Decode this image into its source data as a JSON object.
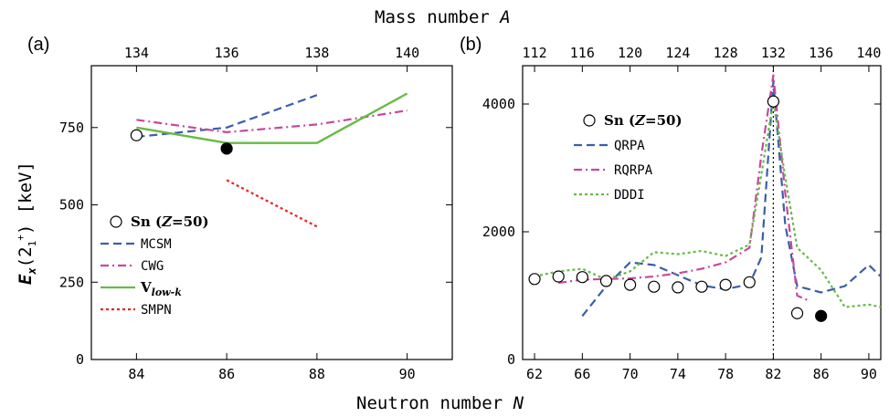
{
  "figure": {
    "top_axis_title": "Mass number A",
    "bottom_axis_title": "Neutron number N",
    "left_axis_title": "E_x(2_1^+) [keV]"
  },
  "colors": {
    "qrpa_blue": "#3a5fa8",
    "cwg_magenta": "#c8479e",
    "vlowk_green": "#66bb44",
    "smpn_red": "#ee2222",
    "dddi_green": "#66bb44",
    "vline": "#000000"
  },
  "chart_data": [
    {
      "panel": "(a)",
      "type": "line",
      "xlabel": "Neutron number N",
      "x2label": "Mass number A",
      "ylabel": "E_x(2_1^+) [keV]",
      "xlim": [
        83,
        91
      ],
      "ylim": [
        0,
        950
      ],
      "xticks": [
        84,
        86,
        88,
        90
      ],
      "x2ticks": [
        134,
        136,
        138,
        140
      ],
      "yticks": [
        0,
        250,
        500,
        750
      ],
      "series": [
        {
          "name": "MCSM",
          "style": "dash",
          "color": "#3a5fa8",
          "x": [
            84,
            86,
            88
          ],
          "y": [
            720,
            750,
            855
          ]
        },
        {
          "name": "CWG",
          "style": "dashdot",
          "color": "#c8479e",
          "x": [
            84,
            86,
            88,
            90
          ],
          "y": [
            775,
            735,
            760,
            805
          ]
        },
        {
          "name": "V_low-k",
          "style": "solid",
          "color": "#66bb44",
          "x": [
            84,
            86,
            88,
            90
          ],
          "y": [
            750,
            700,
            700,
            860
          ]
        },
        {
          "name": "SMPN",
          "style": "dot",
          "color": "#ee2222",
          "x": [
            86,
            88
          ],
          "y": [
            580,
            430
          ]
        }
      ],
      "markers": [
        {
          "name": "Sn (Z=50)",
          "filled": false,
          "x": [
            84
          ],
          "y": [
            725
          ]
        },
        {
          "name": "Sn (Z=50) filled",
          "filled": true,
          "x": [
            86
          ],
          "y": [
            682
          ]
        }
      ],
      "legend": {
        "position": "lower-left",
        "entries": [
          "Sn (Z=50)",
          "MCSM",
          "CWG",
          "V_low-k",
          "SMPN"
        ]
      }
    },
    {
      "panel": "(b)",
      "type": "line",
      "xlabel": "Neutron number N",
      "x2label": "Mass number A",
      "xlim": [
        61,
        91
      ],
      "ylim": [
        0,
        4600
      ],
      "xticks": [
        62,
        66,
        70,
        74,
        78,
        82,
        86,
        90
      ],
      "x2ticks": [
        112,
        116,
        120,
        124,
        128,
        132,
        136,
        140
      ],
      "yticks": [
        0,
        2000,
        4000
      ],
      "vline_x": 82,
      "series": [
        {
          "name": "QRPA",
          "style": "dash",
          "color": "#3a5fa8",
          "x": [
            66,
            68,
            70,
            72,
            74,
            76,
            78,
            80,
            81,
            82,
            83,
            84,
            86,
            88,
            90,
            91
          ],
          "y": [
            680,
            1150,
            1520,
            1480,
            1320,
            1160,
            1100,
            1180,
            1600,
            4350,
            2100,
            1150,
            1050,
            1150,
            1480,
            1300
          ]
        },
        {
          "name": "RQRPA",
          "style": "dashdot",
          "color": "#c8479e",
          "x": [
            64,
            66,
            68,
            70,
            72,
            74,
            76,
            78,
            80,
            81,
            82,
            83,
            84,
            85
          ],
          "y": [
            1200,
            1250,
            1260,
            1270,
            1300,
            1350,
            1420,
            1520,
            1750,
            3200,
            4450,
            2600,
            1000,
            920
          ]
        },
        {
          "name": "DDDI",
          "style": "dot",
          "color": "#66bb44",
          "x": [
            62,
            64,
            66,
            68,
            70,
            72,
            74,
            76,
            78,
            80,
            81,
            82,
            83,
            84,
            86,
            88,
            90,
            91
          ],
          "y": [
            1300,
            1380,
            1420,
            1250,
            1380,
            1680,
            1650,
            1700,
            1620,
            1800,
            2900,
            4050,
            2850,
            1750,
            1400,
            820,
            860,
            820
          ]
        }
      ],
      "markers": [
        {
          "name": "Sn (Z=50)",
          "filled": false,
          "x": [
            62,
            64,
            66,
            68,
            70,
            72,
            74,
            76,
            78,
            80,
            82,
            84
          ],
          "y": [
            1260,
            1300,
            1290,
            1230,
            1170,
            1140,
            1130,
            1140,
            1170,
            1210,
            4040,
            725
          ]
        },
        {
          "name": "Sn (Z=50) filled",
          "filled": true,
          "x": [
            86
          ],
          "y": [
            682
          ]
        }
      ],
      "legend": {
        "position": "upper-left",
        "entries": [
          "Sn (Z=50)",
          "QRPA",
          "RQRPA",
          "DDDI"
        ]
      }
    }
  ]
}
